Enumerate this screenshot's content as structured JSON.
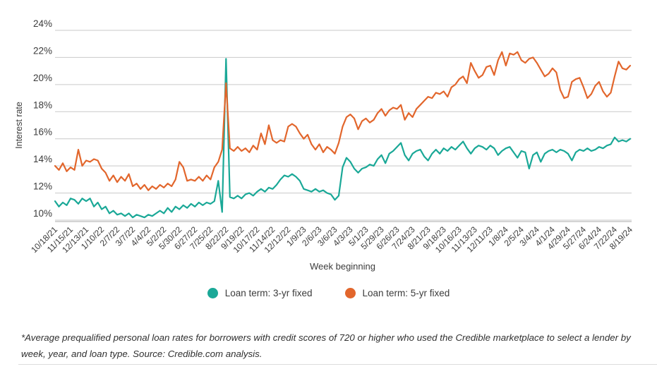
{
  "chart_data": {
    "type": "line",
    "xlabel": "Week beginning",
    "ylabel": "Interest rate",
    "ylim": [
      10,
      24
    ],
    "y_ticks": [
      24,
      22,
      20,
      18,
      16,
      14,
      12,
      10
    ],
    "y_tick_suffix": "%",
    "grid": true,
    "grid_color": "#c9c9c9",
    "axis_line_color": "#a8a8a8",
    "tick_label_color": "#3b3b3b",
    "x_tick_every_n_points": 4,
    "x_tick_labels": [
      "10/18/21",
      "11/15/21",
      "12/13/21",
      "1/10/22",
      "2/7/22",
      "3/7/22",
      "4/4/22",
      "5/2/22",
      "5/30/22",
      "6/27/22",
      "7/25/22",
      "8/22/22",
      "9/19/22",
      "10/17/22",
      "11/14/22",
      "12/12/22",
      "1/9/23",
      "2/6/23",
      "3/6/23",
      "4/3/23",
      "5/1/23",
      "5/29/23",
      "6/26/23",
      "7/24/23",
      "8/21/23",
      "9/18/23",
      "10/16/23",
      "11/13/23",
      "12/11/23",
      "1/8/24",
      "2/5/24",
      "3/4/24",
      "4/1/24",
      "4/29/24",
      "5/27/24",
      "6/24/24",
      "7/22/24",
      "8/19/24"
    ],
    "legend_position": "bottom",
    "series": [
      {
        "name": "Loan term: 3-yr fixed",
        "color": "#1aa897",
        "values": [
          11.4,
          11.0,
          11.3,
          11.1,
          11.6,
          11.5,
          11.2,
          11.6,
          11.4,
          11.6,
          11.0,
          11.3,
          10.8,
          11.0,
          10.5,
          10.7,
          10.4,
          10.5,
          10.3,
          10.5,
          10.2,
          10.4,
          10.3,
          10.2,
          10.4,
          10.3,
          10.5,
          10.7,
          10.5,
          10.9,
          10.6,
          11.0,
          10.8,
          11.1,
          10.9,
          11.2,
          11.0,
          11.3,
          11.1,
          11.3,
          11.2,
          11.4,
          12.9,
          10.6,
          21.9,
          11.7,
          11.6,
          11.8,
          11.6,
          11.9,
          12.0,
          11.8,
          12.1,
          12.3,
          12.1,
          12.4,
          12.3,
          12.6,
          13.0,
          13.3,
          13.2,
          13.4,
          13.2,
          12.9,
          12.3,
          12.2,
          12.1,
          12.3,
          12.1,
          12.2,
          12.0,
          11.9,
          11.5,
          11.8,
          13.9,
          14.6,
          14.3,
          13.8,
          13.5,
          13.8,
          13.9,
          14.1,
          14.0,
          14.5,
          14.8,
          14.2,
          14.9,
          15.1,
          15.4,
          15.7,
          14.8,
          14.4,
          14.9,
          15.1,
          15.2,
          14.7,
          14.4,
          14.9,
          15.2,
          14.9,
          15.3,
          15.1,
          15.4,
          15.2,
          15.5,
          15.8,
          15.3,
          14.9,
          15.3,
          15.5,
          15.4,
          15.2,
          15.5,
          15.3,
          14.8,
          15.1,
          15.3,
          15.4,
          15.0,
          14.6,
          15.1,
          15.0,
          13.8,
          14.8,
          15.0,
          14.3,
          14.9,
          15.1,
          15.2,
          15.0,
          15.2,
          15.1,
          14.9,
          14.4,
          15.0,
          15.2,
          15.1,
          15.3,
          15.1,
          15.2,
          15.4,
          15.3,
          15.5,
          15.6,
          16.1,
          15.8,
          15.9,
          15.8,
          16.0
        ]
      },
      {
        "name": "Loan term: 5-yr fixed",
        "color": "#e2662c",
        "values": [
          14.0,
          13.7,
          14.2,
          13.6,
          13.9,
          13.7,
          15.2,
          14.0,
          14.4,
          14.3,
          14.5,
          14.4,
          13.8,
          13.5,
          12.9,
          13.3,
          12.8,
          13.2,
          12.9,
          13.4,
          12.5,
          12.7,
          12.3,
          12.6,
          12.2,
          12.5,
          12.3,
          12.6,
          12.4,
          12.7,
          12.5,
          13.0,
          14.3,
          13.9,
          12.9,
          13.0,
          12.9,
          13.2,
          12.9,
          13.3,
          13.0,
          13.9,
          14.3,
          15.2,
          20.1,
          15.3,
          15.1,
          15.4,
          15.1,
          15.3,
          15.0,
          15.5,
          15.2,
          16.4,
          15.6,
          17.0,
          15.9,
          15.7,
          15.9,
          15.8,
          16.9,
          17.1,
          16.9,
          16.4,
          16.0,
          16.3,
          15.6,
          15.2,
          15.6,
          15.0,
          15.4,
          15.2,
          14.9,
          15.7,
          16.9,
          17.6,
          17.8,
          17.5,
          16.7,
          17.3,
          17.5,
          17.2,
          17.4,
          17.9,
          18.2,
          17.7,
          18.1,
          18.3,
          18.2,
          18.5,
          17.4,
          17.9,
          17.6,
          18.2,
          18.5,
          18.8,
          19.1,
          19.0,
          19.4,
          19.3,
          19.5,
          19.1,
          19.8,
          20.0,
          20.4,
          20.6,
          20.1,
          21.6,
          21.0,
          20.5,
          20.7,
          21.3,
          21.4,
          20.7,
          21.8,
          22.4,
          21.4,
          22.3,
          22.2,
          22.4,
          21.8,
          21.6,
          21.9,
          22.0,
          21.6,
          21.1,
          20.6,
          20.8,
          21.2,
          20.9,
          19.6,
          19.0,
          19.1,
          20.2,
          20.4,
          20.5,
          19.8,
          19.0,
          19.3,
          19.9,
          20.2,
          19.5,
          19.1,
          19.4,
          20.6,
          21.7,
          21.2,
          21.1,
          21.4
        ]
      }
    ]
  },
  "legend": {
    "items": [
      {
        "label": "Loan term: 3-yr fixed",
        "color": "#1aa897"
      },
      {
        "label": "Loan term: 5-yr fixed",
        "color": "#e2662c"
      }
    ]
  },
  "footnote": "*Average prequalified personal loan rates for borrowers with credit scores of 720 or higher who used the Credible marketplace to select a lender by week, year, and loan type. Source: Credible.com analysis."
}
